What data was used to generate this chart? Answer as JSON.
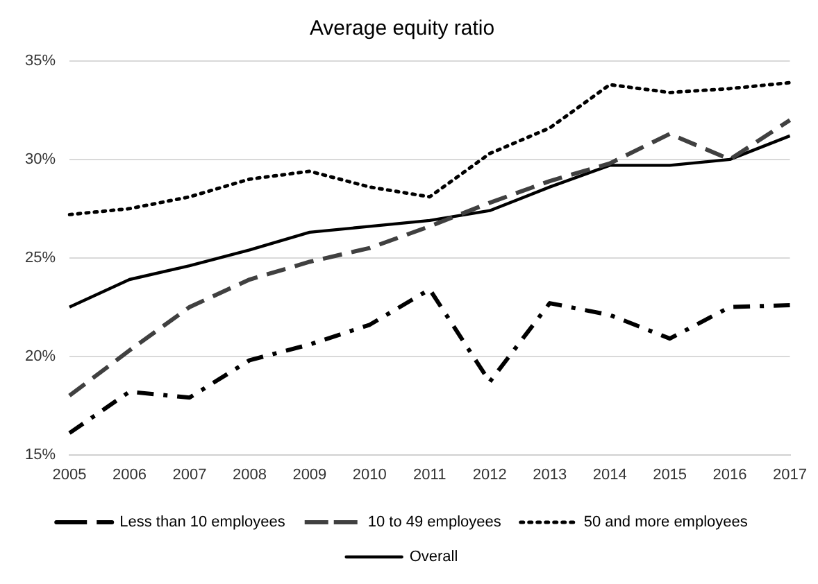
{
  "chart_data": {
    "type": "line",
    "title": "Average equity ratio",
    "categories": [
      "2005",
      "2006",
      "2007",
      "2008",
      "2009",
      "2010",
      "2011",
      "2012",
      "2013",
      "2014",
      "2015",
      "2016",
      "2017"
    ],
    "series": [
      {
        "name": "Less than 10 employees",
        "color": "#000000",
        "line_style": "dashdot",
        "values": [
          16.1,
          18.2,
          17.9,
          19.8,
          20.6,
          21.6,
          23.4,
          18.7,
          22.7,
          22.1,
          20.9,
          22.5,
          22.6
        ]
      },
      {
        "name": "10 to 49 employees",
        "color": "#404040",
        "line_style": "dashed",
        "values": [
          18.0,
          20.3,
          22.5,
          23.9,
          24.8,
          25.5,
          26.6,
          27.8,
          28.9,
          29.8,
          31.3,
          30.0,
          32.0
        ]
      },
      {
        "name": "50 and more employees",
        "color": "#000000",
        "line_style": "dotted",
        "values": [
          27.2,
          27.5,
          28.1,
          29.0,
          29.4,
          28.6,
          28.1,
          30.3,
          31.6,
          33.8,
          33.4,
          33.6,
          33.9
        ]
      },
      {
        "name": "Overall",
        "color": "#000000",
        "line_style": "solid",
        "values": [
          22.5,
          23.9,
          24.6,
          25.4,
          26.3,
          26.6,
          26.9,
          27.4,
          28.6,
          29.7,
          29.7,
          30.0,
          31.2
        ]
      }
    ],
    "ylim": [
      15,
      35
    ],
    "yticks": [
      {
        "value": 15,
        "label": "15%"
      },
      {
        "value": 20,
        "label": "20%"
      },
      {
        "value": 25,
        "label": "25%"
      },
      {
        "value": 30,
        "label": "30%"
      },
      {
        "value": 35,
        "label": "35%"
      }
    ],
    "grid": "y",
    "legend": "bottom",
    "marker": "none"
  }
}
